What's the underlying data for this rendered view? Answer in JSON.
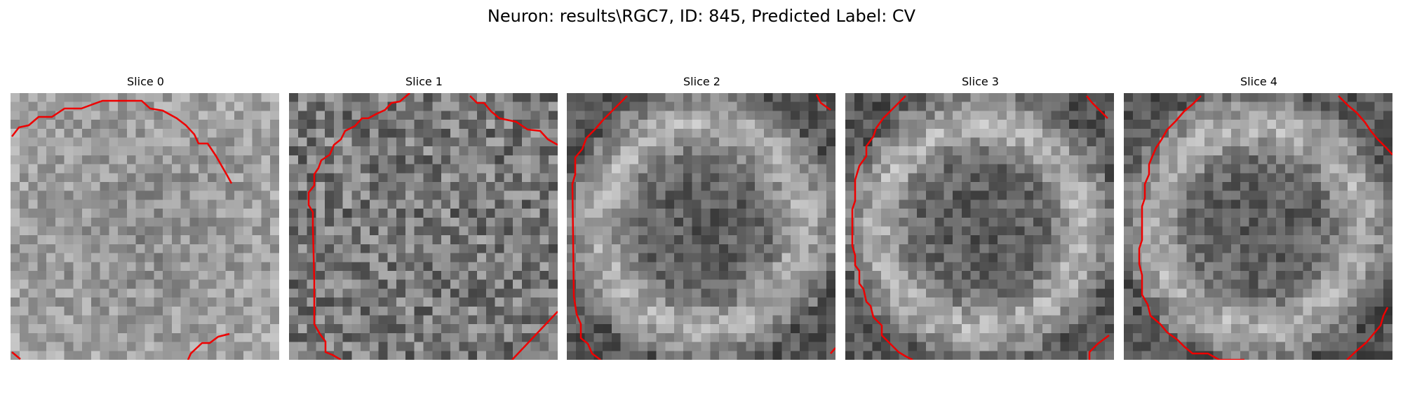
{
  "figure": {
    "title": "Neuron: results\\RGC7, ID: 845, Predicted Label: CV"
  },
  "slices": [
    {
      "label": "Slice 0"
    },
    {
      "label": "Slice 1"
    },
    {
      "label": "Slice 2"
    },
    {
      "label": "Slice 3"
    },
    {
      "label": "Slice 4"
    }
  ],
  "colors": {
    "contour": "#ee0000",
    "colormap": "gray"
  }
}
